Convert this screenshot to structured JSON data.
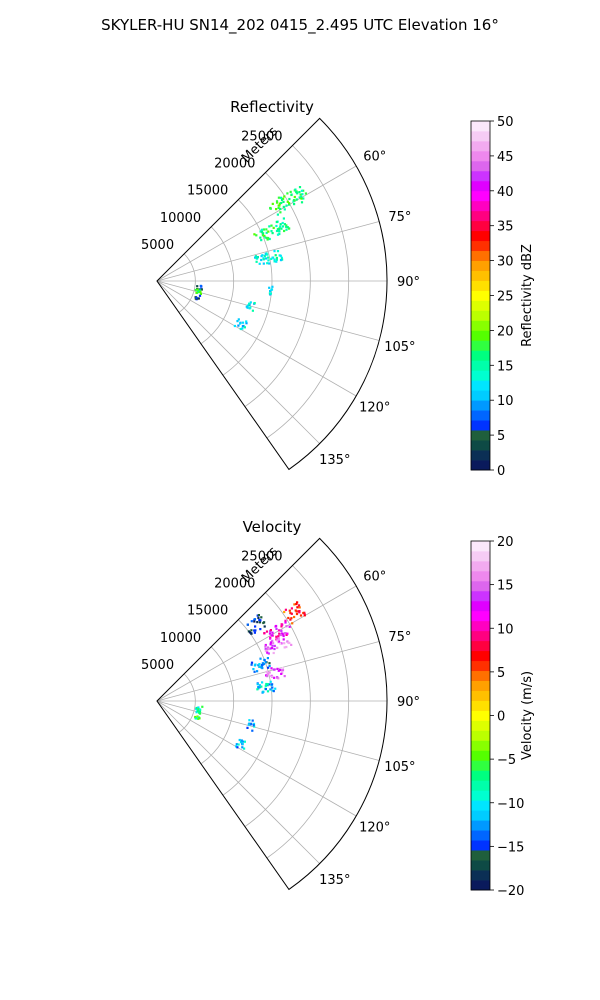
{
  "suptitle": "SKYLER-HU  SN14_202  0415_2.495 UTC Elevation 16°",
  "chart_data": [
    {
      "type": "polar_sector",
      "title": "Reflectivity",
      "radial_axis_label": "Meters",
      "radial_ticks": [
        5000,
        10000,
        15000,
        20000,
        25000
      ],
      "radial_tick_labels": [
        "5000",
        "10000",
        "15000",
        "20000",
        "25000"
      ],
      "rlim": [
        0,
        30000
      ],
      "azimuth_range_deg": [
        45,
        145
      ],
      "azimuth_ticks": [
        60,
        75,
        90,
        105,
        120,
        135
      ],
      "azimuth_tick_labels": [
        "60°",
        "75°",
        "90°",
        "105°",
        "120°",
        "135°"
      ],
      "grid": true,
      "colorbar": {
        "label": "Reflectivity dBZ",
        "range": [
          0,
          50
        ],
        "ticks": [
          0,
          5,
          10,
          15,
          20,
          25,
          30,
          35,
          40,
          45,
          50
        ],
        "tick_labels": [
          "0",
          "5",
          "10",
          "15",
          "20",
          "25",
          "30",
          "35",
          "40",
          "45",
          "50"
        ],
        "colors": [
          "#0a1a5c",
          "#0b2f55",
          "#0e4a45",
          "#1f5f3c",
          "#0033ff",
          "#0066ff",
          "#0099ff",
          "#00ccff",
          "#00e5ff",
          "#00ffd0",
          "#00ffaa",
          "#00ff80",
          "#30ff40",
          "#55ff00",
          "#88ff00",
          "#bbff00",
          "#ddff00",
          "#ffff00",
          "#ffe000",
          "#ffc000",
          "#ffa000",
          "#ff7000",
          "#ff3000",
          "#ff0000",
          "#ff0040",
          "#ff0080",
          "#ff00c0",
          "#ff00ff",
          "#e000ff",
          "#cc33ff",
          "#dd66ee",
          "#ee88ee",
          "#f2aaf0",
          "#f6ccf5",
          "#fbe8fb"
        ]
      },
      "echo_clusters": [
        {
          "az": 58,
          "r_min": 17500,
          "r_max": 22500,
          "value": 17
        },
        {
          "az": 66,
          "r_min": 14000,
          "r_max": 18500,
          "value": 16
        },
        {
          "az": 78,
          "r_min": 13000,
          "r_max": 16500,
          "value": 13
        },
        {
          "az": 104,
          "r_min": 12000,
          "r_max": 13000,
          "value": 12
        },
        {
          "az": 117,
          "r_min": 11500,
          "r_max": 12800,
          "value": 12
        },
        {
          "az": 94,
          "r_min": 14500,
          "r_max": 15000,
          "value": 12
        },
        {
          "az": 98,
          "r_min": 5000,
          "r_max": 5800,
          "value": 6
        },
        {
          "az": 103,
          "r_min": 5000,
          "r_max": 5800,
          "value": 18
        },
        {
          "az": 111,
          "r_min": 5200,
          "r_max": 5800,
          "value": 4
        }
      ]
    },
    {
      "type": "polar_sector",
      "title": "Velocity",
      "radial_axis_label": "Meters",
      "radial_ticks": [
        5000,
        10000,
        15000,
        20000,
        25000
      ],
      "radial_tick_labels": [
        "5000",
        "10000",
        "15000",
        "20000",
        "25000"
      ],
      "rlim": [
        0,
        30000
      ],
      "azimuth_range_deg": [
        45,
        145
      ],
      "azimuth_ticks": [
        60,
        75,
        90,
        105,
        120,
        135
      ],
      "azimuth_tick_labels": [
        "60°",
        "75°",
        "90°",
        "105°",
        "120°",
        "135°"
      ],
      "grid": true,
      "colorbar": {
        "label": "Velocity (m/s)",
        "range": [
          -20,
          20
        ],
        "ticks": [
          -20,
          -15,
          -10,
          -5,
          0,
          5,
          10,
          15,
          20
        ],
        "tick_labels": [
          "−20",
          "−15",
          "−10",
          "−5",
          "0",
          "5",
          "10",
          "15",
          "20"
        ],
        "colors": [
          "#0a1a5c",
          "#0b2f55",
          "#0e4a45",
          "#1f5f3c",
          "#0033ff",
          "#0066ff",
          "#0099ff",
          "#00ccff",
          "#00e5ff",
          "#00ffd0",
          "#00ffaa",
          "#00ff80",
          "#30ff40",
          "#55ff00",
          "#88ff00",
          "#bbff00",
          "#ddff00",
          "#ffff00",
          "#ffe000",
          "#ffc000",
          "#ffa000",
          "#ff7000",
          "#ff3000",
          "#ff0000",
          "#ff0040",
          "#ff0080",
          "#ff00c0",
          "#ff00ff",
          "#e000ff",
          "#cc33ff",
          "#dd66ee",
          "#ee88ee",
          "#f2aaf0",
          "#f6ccf5",
          "#fbe8fb"
        ]
      },
      "echo_clusters": [
        {
          "az": 57,
          "r_min": 20000,
          "r_max": 22500,
          "value": 6
        },
        {
          "az": 60,
          "r_min": 16500,
          "r_max": 20000,
          "value": 12
        },
        {
          "az": 64,
          "r_min": 15500,
          "r_max": 19000,
          "value": 15
        },
        {
          "az": 70,
          "r_min": 13000,
          "r_max": 15500,
          "value": -13
        },
        {
          "az": 76,
          "r_min": 14500,
          "r_max": 17000,
          "value": 15
        },
        {
          "az": 82,
          "r_min": 13000,
          "r_max": 15500,
          "value": -11
        },
        {
          "az": 52,
          "r_min": 15000,
          "r_max": 17500,
          "value": -16
        },
        {
          "az": 104,
          "r_min": 12000,
          "r_max": 13000,
          "value": -12
        },
        {
          "az": 117,
          "r_min": 11500,
          "r_max": 12800,
          "value": -12
        },
        {
          "az": 98,
          "r_min": 5000,
          "r_max": 5800,
          "value": -8
        },
        {
          "az": 103,
          "r_min": 5000,
          "r_max": 5800,
          "value": -7
        },
        {
          "az": 111,
          "r_min": 5200,
          "r_max": 5800,
          "value": -6
        }
      ]
    }
  ]
}
